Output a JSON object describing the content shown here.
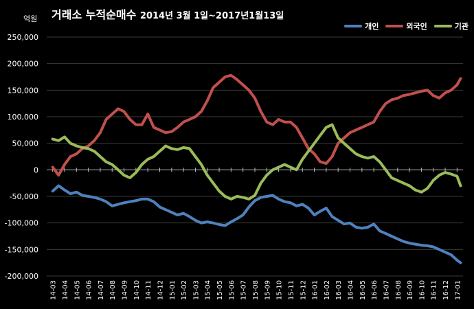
{
  "header": {
    "title": "거래소 누적순매수",
    "subtitle": "2014년 3월 1일~2017년1월13일",
    "unit": "억원"
  },
  "chart_data": {
    "type": "line",
    "ylim": [
      -200000,
      250000
    ],
    "y_ticks": [
      "250,000",
      "200,000",
      "150,000",
      "100,000",
      "50,000",
      "0",
      "-50,000",
      "-100,000",
      "-150,000",
      "-200,000"
    ],
    "y_tick_values": [
      250000,
      200000,
      150000,
      100000,
      50000,
      0,
      -50000,
      -100000,
      -150000,
      -200000
    ],
    "categories": [
      "14-03",
      "14-04",
      "14-05",
      "14-06",
      "14-07",
      "14-08",
      "14-09",
      "14-10",
      "14-11",
      "14-12",
      "15-01",
      "15-02",
      "15-03",
      "15-04",
      "15-05",
      "15-06",
      "15-07",
      "15-08",
      "15-09",
      "15-10",
      "15-11",
      "15-12",
      "16-01",
      "16-02",
      "16-03",
      "16-04",
      "16-05",
      "16-06",
      "16-07",
      "16-08",
      "16-09",
      "16-10",
      "16-11",
      "16-12",
      "17-01"
    ],
    "grid": true,
    "legend_position": "top-right",
    "series": [
      {
        "name": "개인",
        "color": "#4f81bd",
        "x": [
          0,
          0.5,
          1,
          1.5,
          2,
          2.5,
          3,
          3.5,
          4,
          4.5,
          5,
          5.5,
          6,
          6.5,
          7,
          7.5,
          8,
          8.5,
          9,
          9.5,
          10,
          10.5,
          11,
          11.5,
          12,
          12.5,
          13,
          13.5,
          14,
          14.5,
          15,
          15.5,
          16,
          16.5,
          17,
          17.5,
          18,
          18.5,
          19,
          19.5,
          20,
          20.5,
          21,
          21.5,
          22,
          22.5,
          23,
          23.5,
          24,
          24.5,
          25,
          25.5,
          26,
          26.5,
          27,
          27.5,
          28,
          28.5,
          29,
          29.5,
          30,
          30.5,
          31,
          31.5,
          32,
          32.5,
          33,
          33.5,
          34,
          34.3
        ],
        "values": [
          -40000,
          -30000,
          -38000,
          -45000,
          -42000,
          -48000,
          -50000,
          -52000,
          -55000,
          -60000,
          -68000,
          -65000,
          -62000,
          -60000,
          -58000,
          -55000,
          -55000,
          -60000,
          -70000,
          -75000,
          -80000,
          -85000,
          -82000,
          -88000,
          -95000,
          -100000,
          -98000,
          -100000,
          -103000,
          -105000,
          -98000,
          -92000,
          -85000,
          -70000,
          -58000,
          -52000,
          -50000,
          -48000,
          -55000,
          -60000,
          -62000,
          -68000,
          -65000,
          -72000,
          -85000,
          -78000,
          -72000,
          -88000,
          -95000,
          -102000,
          -100000,
          -108000,
          -110000,
          -108000,
          -102000,
          -115000,
          -120000,
          -125000,
          -130000,
          -135000,
          -138000,
          -140000,
          -142000,
          -143000,
          -145000,
          -150000,
          -155000,
          -160000,
          -170000,
          -175000
        ]
      },
      {
        "name": "외국인",
        "color": "#c0504d",
        "x": [
          0,
          0.5,
          1,
          1.5,
          2,
          2.5,
          3,
          3.5,
          4,
          4.5,
          5,
          5.5,
          6,
          6.5,
          7,
          7.5,
          8,
          8.5,
          9,
          9.5,
          10,
          10.5,
          11,
          11.5,
          12,
          12.5,
          13,
          13.5,
          14,
          14.5,
          15,
          15.5,
          16,
          16.5,
          17,
          17.5,
          18,
          18.5,
          19,
          19.5,
          20,
          20.5,
          21,
          21.5,
          22,
          22.5,
          23,
          23.5,
          24,
          24.5,
          25,
          25.5,
          26,
          26.5,
          27,
          27.5,
          28,
          28.5,
          29,
          29.5,
          30,
          30.5,
          31,
          31.5,
          32,
          32.5,
          33,
          33.5,
          34,
          34.3
        ],
        "values": [
          5000,
          -10000,
          10000,
          25000,
          30000,
          40000,
          45000,
          55000,
          70000,
          95000,
          105000,
          115000,
          110000,
          95000,
          85000,
          85000,
          105000,
          80000,
          75000,
          70000,
          72000,
          80000,
          90000,
          95000,
          100000,
          110000,
          130000,
          155000,
          165000,
          175000,
          178000,
          170000,
          160000,
          150000,
          135000,
          110000,
          90000,
          85000,
          95000,
          90000,
          90000,
          80000,
          60000,
          40000,
          30000,
          15000,
          12000,
          25000,
          50000,
          60000,
          70000,
          75000,
          80000,
          85000,
          90000,
          110000,
          125000,
          132000,
          135000,
          140000,
          142000,
          145000,
          148000,
          150000,
          140000,
          135000,
          145000,
          150000,
          160000,
          172000
        ]
      },
      {
        "name": "기관",
        "color": "#9bbb59",
        "x": [
          0,
          0.5,
          1,
          1.5,
          2,
          2.5,
          3,
          3.5,
          4,
          4.5,
          5,
          5.5,
          6,
          6.5,
          7,
          7.5,
          8,
          8.5,
          9,
          9.5,
          10,
          10.5,
          11,
          11.5,
          12,
          12.5,
          13,
          13.5,
          14,
          14.5,
          15,
          15.5,
          16,
          16.5,
          17,
          17.5,
          18,
          18.5,
          19,
          19.5,
          20,
          20.5,
          21,
          21.5,
          22,
          22.5,
          23,
          23.5,
          24,
          24.5,
          25,
          25.5,
          26,
          26.5,
          27,
          27.5,
          28,
          28.5,
          29,
          29.5,
          30,
          30.5,
          31,
          31.5,
          32,
          32.5,
          33,
          33.5,
          34,
          34.3
        ],
        "values": [
          58000,
          55000,
          62000,
          50000,
          45000,
          42000,
          40000,
          35000,
          25000,
          15000,
          10000,
          0,
          -10000,
          -15000,
          -5000,
          10000,
          20000,
          25000,
          35000,
          45000,
          40000,
          38000,
          42000,
          40000,
          25000,
          10000,
          -10000,
          -25000,
          -40000,
          -50000,
          -55000,
          -50000,
          -52000,
          -55000,
          -48000,
          -25000,
          -10000,
          0,
          5000,
          10000,
          5000,
          0,
          20000,
          35000,
          50000,
          65000,
          80000,
          85000,
          60000,
          50000,
          40000,
          30000,
          25000,
          22000,
          25000,
          15000,
          0,
          -15000,
          -20000,
          -25000,
          -30000,
          -38000,
          -42000,
          -35000,
          -20000,
          -10000,
          -5000,
          -8000,
          -12000,
          -30000
        ]
      }
    ]
  }
}
